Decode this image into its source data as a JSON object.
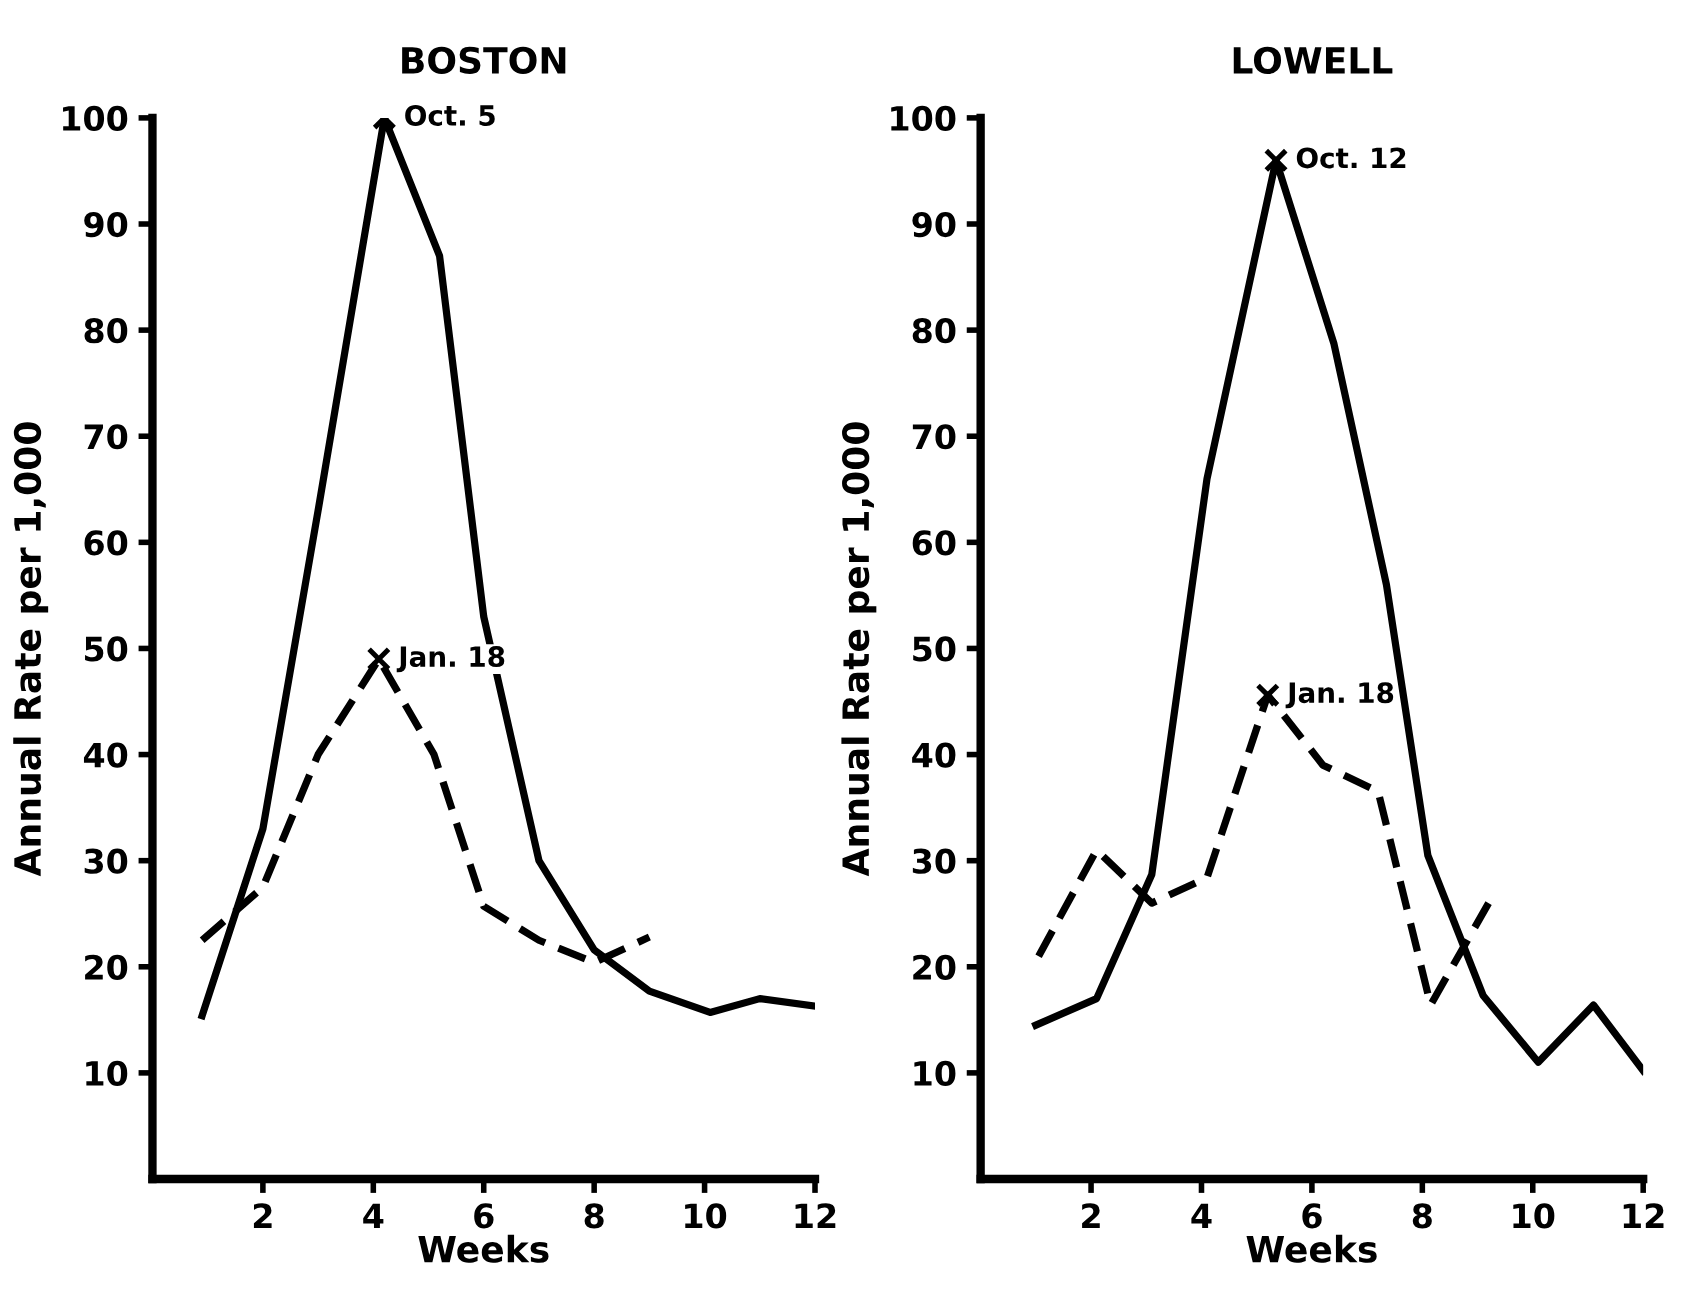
{
  "chart_data": [
    {
      "type": "line",
      "title": "BOSTON",
      "xlabel": "Weeks",
      "ylabel": "Annual Rate per 1,000",
      "xlim": [
        0,
        12
      ],
      "ylim": [
        0,
        100
      ],
      "xticks": [
        2,
        4,
        6,
        8,
        10,
        12
      ],
      "yticks": [
        10,
        20,
        30,
        40,
        50,
        60,
        70,
        80,
        90,
        100
      ],
      "grid": false,
      "legend": false,
      "series": [
        {
          "color": "#000000",
          "line_style": "solid",
          "x": [
            0.9,
            2,
            3,
            4.2,
            5.2,
            6,
            7,
            8,
            9,
            10.1,
            11,
            12
          ],
          "values": [
            15.4,
            33,
            63,
            100,
            87,
            53,
            30,
            21.6,
            17.7,
            15.7,
            17,
            16.3
          ]
        },
        {
          "color": "#000000",
          "line_style": "dashed",
          "x": [
            0.9,
            2,
            3,
            4.1,
            5.1,
            6,
            7,
            8,
            9
          ],
          "values": [
            22.5,
            27.5,
            40,
            49,
            40,
            25.7,
            22.5,
            20.4,
            22.8
          ]
        }
      ],
      "annotations": [
        {
          "text": "Oct. 5",
          "x": 4.2,
          "y": 100
        },
        {
          "text": "Jan. 18",
          "x": 4.1,
          "y": 49
        }
      ]
    },
    {
      "type": "line",
      "title": "LOWELL",
      "xlabel": "Weeks",
      "ylabel": "Annual Rate per 1,000",
      "xlim": [
        0,
        12
      ],
      "ylim": [
        0,
        100
      ],
      "xticks": [
        2,
        4,
        6,
        8,
        10,
        12
      ],
      "yticks": [
        10,
        20,
        30,
        40,
        50,
        60,
        70,
        80,
        90,
        100
      ],
      "grid": false,
      "legend": false,
      "series": [
        {
          "color": "#000000",
          "line_style": "solid",
          "x": [
            1,
            2.1,
            3.1,
            4.1,
            5.35,
            6.4,
            7.35,
            8.1,
            9.1,
            10.1,
            11.1,
            12
          ],
          "values": [
            14.5,
            17,
            28.7,
            66,
            96,
            78.7,
            56,
            30.5,
            17.3,
            11,
            16.4,
            10.2
          ]
        },
        {
          "color": "#000000",
          "line_style": "dashed",
          "x": [
            1.05,
            2.1,
            3.1,
            4.1,
            5.2,
            6.2,
            7.2,
            8.15,
            9.2
          ],
          "values": [
            21,
            31,
            26,
            28.4,
            45.6,
            39,
            36.5,
            16.4,
            26
          ]
        }
      ],
      "annotations": [
        {
          "text": "Oct. 12",
          "x": 5.35,
          "y": 96
        },
        {
          "text": "Jan. 18",
          "x": 5.2,
          "y": 45.6
        }
      ]
    }
  ]
}
